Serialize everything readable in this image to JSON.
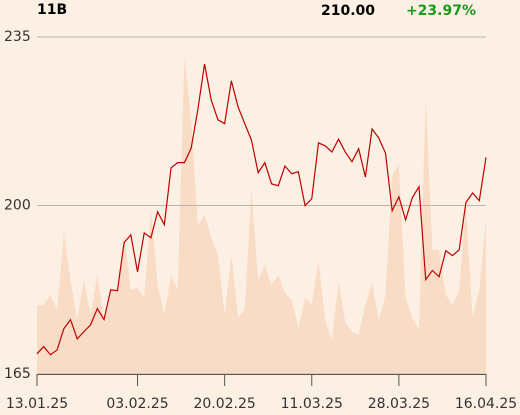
{
  "chart_data": {
    "type": "line",
    "header": {
      "ticker": "11B",
      "price": "210.00",
      "change": "+23.97%"
    },
    "x": [
      0,
      1,
      2,
      3,
      4,
      5,
      6,
      7,
      8,
      9,
      10,
      11,
      12,
      13,
      14,
      15,
      16,
      17,
      18,
      19,
      20,
      21,
      22,
      23,
      24,
      25,
      26,
      27,
      28,
      29,
      30,
      31,
      32,
      33,
      34,
      35,
      36,
      37,
      38,
      39,
      40,
      41,
      42,
      43,
      44,
      45,
      46,
      47,
      48,
      49,
      50,
      51,
      52,
      53,
      54,
      55,
      56,
      57,
      58,
      59,
      60,
      61,
      62,
      63,
      64,
      65,
      66,
      67
    ],
    "series": [
      {
        "color": "#c00000",
        "values": [
          169.2,
          170.7,
          169.0,
          170.0,
          174.4,
          176.3,
          172.3,
          173.8,
          175.2,
          178.6,
          176.3,
          182.5,
          182.3,
          192.3,
          193.9,
          186.2,
          194.3,
          193.3,
          198.7,
          196.0,
          207.8,
          208.9,
          208.9,
          211.9,
          219.9,
          229.4,
          221.9,
          217.8,
          217.0,
          225.9,
          220.5,
          217.0,
          213.6,
          206.8,
          208.9,
          204.5,
          204.1,
          208.2,
          206.6,
          207.0,
          200.0,
          201.4,
          213.0,
          212.4,
          211.1,
          213.8,
          211.1,
          209.1,
          211.8,
          205.9,
          215.9,
          214.0,
          210.9,
          198.9,
          201.8,
          197.0,
          201.6,
          203.9,
          184.6,
          186.5,
          185.2,
          190.6,
          189.6,
          190.8,
          200.6,
          202.6,
          201.0,
          210.0
        ]
      }
    ],
    "volume": {
      "color": "#f8dcc5",
      "values": [
        69,
        69,
        79,
        64,
        141,
        94,
        54,
        94,
        59,
        99,
        54,
        84,
        84,
        139,
        84,
        86,
        76,
        164,
        89,
        59,
        99,
        84,
        317,
        254,
        149,
        159,
        137,
        119,
        59,
        119,
        56,
        64,
        184,
        94,
        109,
        89,
        99,
        81,
        74,
        46,
        76,
        69,
        114,
        54,
        34,
        92,
        52,
        42,
        39,
        69,
        91,
        54,
        79,
        199,
        209,
        76,
        56,
        44,
        276,
        124,
        124,
        79,
        69,
        84,
        169,
        56,
        84,
        156
      ]
    },
    "xlim": [
      0,
      67
    ],
    "xticks": [
      {
        "value": 0,
        "label": "13.01.25"
      },
      {
        "value": 15,
        "label": "03.02.25"
      },
      {
        "value": 28,
        "label": "20.02.25"
      },
      {
        "value": 41,
        "label": "11.03.25"
      },
      {
        "value": 54,
        "label": "28.03.25"
      },
      {
        "value": 67,
        "label": "16.04.25"
      }
    ],
    "ylim": [
      165,
      235
    ],
    "yticks": [
      165,
      200,
      235
    ],
    "grid": true
  }
}
